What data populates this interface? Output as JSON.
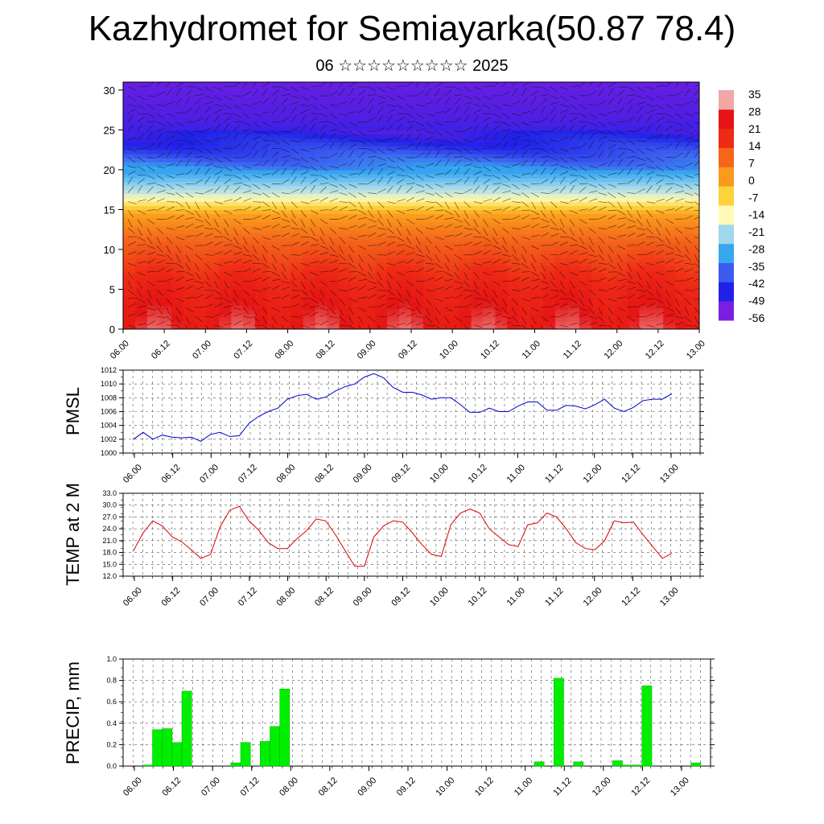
{
  "header": {
    "title": "Kazhydromet for Semiayarka(50.87 78.4)",
    "subtitle": "06 ☆☆☆☆☆☆☆☆☆ 2025"
  },
  "chart_data": [
    {
      "type": "heatmap",
      "title": "",
      "ylim": [
        0,
        31
      ],
      "y_ticks": [
        "0",
        "5",
        "10",
        "15",
        "20",
        "25",
        "30"
      ],
      "x_ticks": [
        "06.00",
        "06.12",
        "07.00",
        "07.12",
        "08.00",
        "08.12",
        "09.00",
        "09.12",
        "10.00",
        "10.12",
        "11.00",
        "11.12",
        "12.00",
        "12.12",
        "13.00"
      ],
      "colorbar_labels": [
        "35",
        "28",
        "21",
        "14",
        "7",
        "0",
        "-7",
        "-14",
        "-21",
        "-28",
        "-35",
        "-42",
        "-49",
        "-56"
      ],
      "colorbar_range": [
        -60,
        38
      ],
      "colors": [
        "#7a1fe0",
        "#2020e8",
        "#3c5cf0",
        "#36a8f0",
        "#9fd8ec",
        "#fff9b8",
        "#fdd23a",
        "#fb9a1c",
        "#f5661a",
        "#ef2a16",
        "#e61414",
        "#f2a6a6"
      ],
      "profile": {
        "levels": [
          0,
          2,
          5,
          8,
          11,
          13,
          14.5,
          15.5,
          17,
          19,
          21,
          23,
          25,
          27,
          31
        ],
        "temperatures": [
          30,
          28,
          24,
          18,
          12,
          6,
          1,
          -8,
          -20,
          -30,
          -40,
          -48,
          -54,
          -56,
          -58
        ]
      },
      "wind_vectors": "overlay"
    },
    {
      "type": "line",
      "ylabel": "PMSL",
      "ylim": [
        1000,
        1012
      ],
      "y_ticks": [
        "1000",
        "1002",
        "1004",
        "1006",
        "1008",
        "1010",
        "1012"
      ],
      "x_ticks": [
        "06.00",
        "06.12",
        "07.00",
        "07.12",
        "08.00",
        "08.12",
        "09.00",
        "09.12",
        "10.00",
        "10.12",
        "11.00",
        "11.12",
        "12.00",
        "12.12",
        "13.00"
      ],
      "grid": true,
      "series": [
        {
          "color": "#0000cc",
          "values": [
            1002.0,
            1003.0,
            1002.0,
            1002.6,
            1002.3,
            1002.2,
            1002.3,
            1001.7,
            1002.7,
            1003.0,
            1002.4,
            1002.5,
            1004.3,
            1005.3,
            1006.0,
            1006.5,
            1007.8,
            1008.3,
            1008.5,
            1007.8,
            1008.1,
            1009.0,
            1009.6,
            1010.0,
            1011.0,
            1011.5,
            1010.9,
            1009.5,
            1008.8,
            1008.8,
            1008.4,
            1007.8,
            1008.0,
            1008.0,
            1007.0,
            1005.9,
            1005.9,
            1006.5,
            1006.0,
            1006.0,
            1006.8,
            1007.4,
            1007.4,
            1006.2,
            1006.2,
            1006.9,
            1006.8,
            1006.4,
            1007.0,
            1007.8,
            1006.5,
            1006.0,
            1006.6,
            1007.6,
            1007.8,
            1007.8,
            1008.6
          ]
        }
      ]
    },
    {
      "type": "line",
      "ylabel": "TEMP at 2 M",
      "ylim": [
        12,
        33
      ],
      "y_ticks": [
        "12.0",
        "15.0",
        "18.0",
        "21.0",
        "24.0",
        "27.0",
        "30.0",
        "33.0"
      ],
      "x_ticks": [
        "06.00",
        "06.12",
        "07.00",
        "07.12",
        "08.00",
        "08.12",
        "09.00",
        "09.12",
        "10.00",
        "10.12",
        "11.00",
        "11.12",
        "12.00",
        "12.12",
        "13.00"
      ],
      "grid": true,
      "series": [
        {
          "color": "#dd0000",
          "values": [
            18.5,
            23.0,
            26.0,
            24.7,
            22.0,
            20.7,
            18.7,
            16.5,
            17.5,
            24.5,
            28.7,
            29.7,
            26.0,
            23.7,
            20.5,
            19.0,
            19.0,
            21.5,
            23.5,
            26.5,
            26.0,
            22.5,
            18.5,
            14.5,
            14.5,
            22.0,
            24.7,
            26.0,
            25.7,
            23.0,
            20.0,
            17.5,
            17.0,
            25.0,
            28.0,
            29.0,
            28.0,
            24.0,
            22.0,
            20.0,
            19.5,
            25.0,
            25.5,
            28.0,
            27.0,
            24.0,
            20.5,
            19.0,
            18.7,
            21.0,
            26.0,
            25.5,
            25.7,
            22.5,
            19.5,
            16.5,
            17.8
          ]
        }
      ]
    },
    {
      "type": "bar",
      "ylabel": "PRECIP, mm",
      "ylim": [
        0,
        1.0
      ],
      "y_ticks": [
        "0.0",
        "0.2",
        "0.4",
        "0.6",
        "0.8",
        "1.0"
      ],
      "x_ticks": [
        "06.00",
        "06.12",
        "07.00",
        "07.12",
        "08.00",
        "08.12",
        "09.00",
        "09.12",
        "10.00",
        "10.12",
        "11.00",
        "11.12",
        "12.00",
        "12.12",
        "13.00"
      ],
      "grid": true,
      "bar_color": "#00ee00",
      "bars": [
        {
          "i": 2,
          "value": 0.01
        },
        {
          "i": 3,
          "value": 0.34
        },
        {
          "i": 4,
          "value": 0.35
        },
        {
          "i": 5,
          "value": 0.22
        },
        {
          "i": 6,
          "value": 0.7
        },
        {
          "i": 11,
          "value": 0.03
        },
        {
          "i": 12,
          "value": 0.22
        },
        {
          "i": 14,
          "value": 0.23
        },
        {
          "i": 15,
          "value": 0.37
        },
        {
          "i": 16,
          "value": 0.72
        },
        {
          "i": 42,
          "value": 0.04
        },
        {
          "i": 44,
          "value": 0.82
        },
        {
          "i": 46,
          "value": 0.04
        },
        {
          "i": 50,
          "value": 0.05
        },
        {
          "i": 51,
          "value": 0.01
        },
        {
          "i": 52,
          "value": 0.01
        },
        {
          "i": 53,
          "value": 0.75
        },
        {
          "i": 58,
          "value": 0.03
        }
      ]
    }
  ]
}
